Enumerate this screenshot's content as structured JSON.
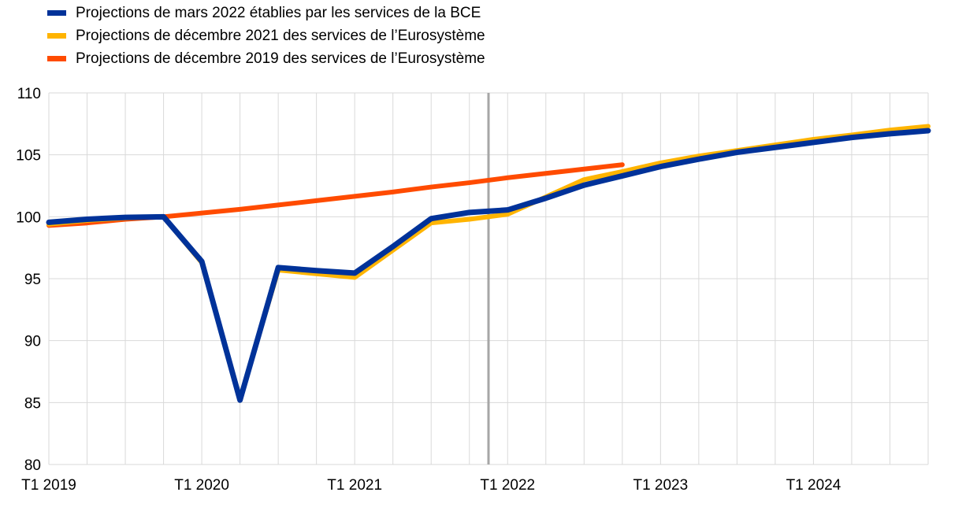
{
  "chart_data": {
    "type": "line",
    "title": "",
    "xlabel": "",
    "ylabel": "",
    "ylim": [
      80,
      110
    ],
    "yticks": [
      80,
      85,
      90,
      95,
      100,
      105,
      110
    ],
    "grid": true,
    "legend_placement": "top-left",
    "x": [
      "T1 2019",
      "T2 2019",
      "T3 2019",
      "T4 2019",
      "T1 2020",
      "T2 2020",
      "T3 2020",
      "T4 2020",
      "T1 2021",
      "T2 2021",
      "T3 2021",
      "T4 2021",
      "T1 2022",
      "T2 2022",
      "T3 2022",
      "T4 2022",
      "T1 2023",
      "T2 2023",
      "T3 2023",
      "T4 2023",
      "T1 2024",
      "T2 2024",
      "T3 2024",
      "T4 2024"
    ],
    "xtick_labels": [
      "T1 2019",
      "T1 2020",
      "T1 2021",
      "T1 2022",
      "T1 2023",
      "T1 2024"
    ],
    "vertical_marker_between": [
      "T4 2021",
      "T1 2022"
    ],
    "series": [
      {
        "name": "Projections de décembre 2019 des services de l’Eurosystème",
        "color": "#FF4B00",
        "values": [
          99.3,
          99.5,
          99.8,
          100.0,
          100.3,
          100.6,
          100.95,
          101.3,
          101.65,
          102.0,
          102.4,
          102.75,
          103.15,
          103.5,
          103.85,
          104.2,
          null,
          null,
          null,
          null,
          null,
          null,
          null,
          null
        ]
      },
      {
        "name": "Projections de décembre 2021 des services de l’Eurosystème",
        "color": "#FFB400",
        "values": [
          99.4,
          99.7,
          99.9,
          100.0,
          96.3,
          85.3,
          95.7,
          95.4,
          95.1,
          97.3,
          99.5,
          99.8,
          100.2,
          101.6,
          103.0,
          103.65,
          104.35,
          104.9,
          105.35,
          105.8,
          106.25,
          106.6,
          107.0,
          107.3
        ]
      },
      {
        "name": "Projections de mars 2022 établies par les services de la BCE",
        "color": "#003299",
        "values": [
          99.55,
          99.8,
          99.95,
          100.0,
          96.4,
          85.2,
          95.9,
          95.65,
          95.45,
          97.6,
          99.85,
          100.35,
          100.55,
          101.5,
          102.55,
          103.3,
          104.05,
          104.65,
          105.2,
          105.6,
          106.0,
          106.4,
          106.7,
          106.95
        ]
      }
    ],
    "legend": [
      {
        "label": "Projections de mars 2022 établies par les services de la BCE",
        "color": "#003299"
      },
      {
        "label": "Projections de décembre 2021 des services de l’Eurosystème",
        "color": "#FFB400"
      },
      {
        "label": "Projections de décembre 2019 des services de l’Eurosystème",
        "color": "#FF4B00"
      }
    ]
  }
}
